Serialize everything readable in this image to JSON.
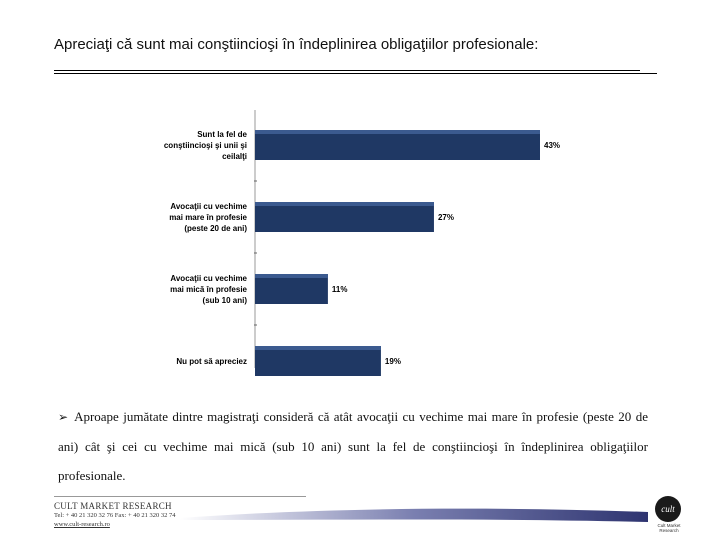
{
  "slide": {
    "title": "Apreciaţi că sunt mai conştiincioşi în îndeplinirea obligaţiilor profesionale:",
    "bullet_text": "Aproape jumătate dintre magistraţi consideră că atât avocaţii cu vechime mai mare în profesie (peste 20 de ani) cât şi cei cu vechime mai mică (sub 10 ani) sunt la fel de conştiincioşi în îndeplinirea obligaţiilor profesionale."
  },
  "chart_data": {
    "type": "bar",
    "orientation": "horizontal",
    "categories": [
      [
        "Sunt la fel de",
        "conştiincioşi şi unii şi",
        "ceilalţi"
      ],
      [
        "Avocaţii cu vechime",
        "mai mare în profesie",
        "(peste 20 de ani)"
      ],
      [
        "Avocaţii cu vechime",
        "mai mică în profesie",
        "(sub 10 ani)"
      ],
      [
        "Nu pot să apreciez"
      ]
    ],
    "values": [
      43,
      27,
      11,
      19
    ],
    "value_labels": [
      "43%",
      "27%",
      "11%",
      "19%"
    ],
    "unit": "%",
    "xlim": [
      0,
      45
    ],
    "bar_color": "#1f3864",
    "title": "",
    "xlabel": "",
    "ylabel": ""
  },
  "footer": {
    "company": "CULT MARKET RESEARCH",
    "phone": "Tel: + 40 21 320 32 76   Fax: + 40 21 320 32 74",
    "web": "www.cult-research.ro",
    "logo_mark": "cult",
    "logo_caption": "Cult Market Research"
  }
}
